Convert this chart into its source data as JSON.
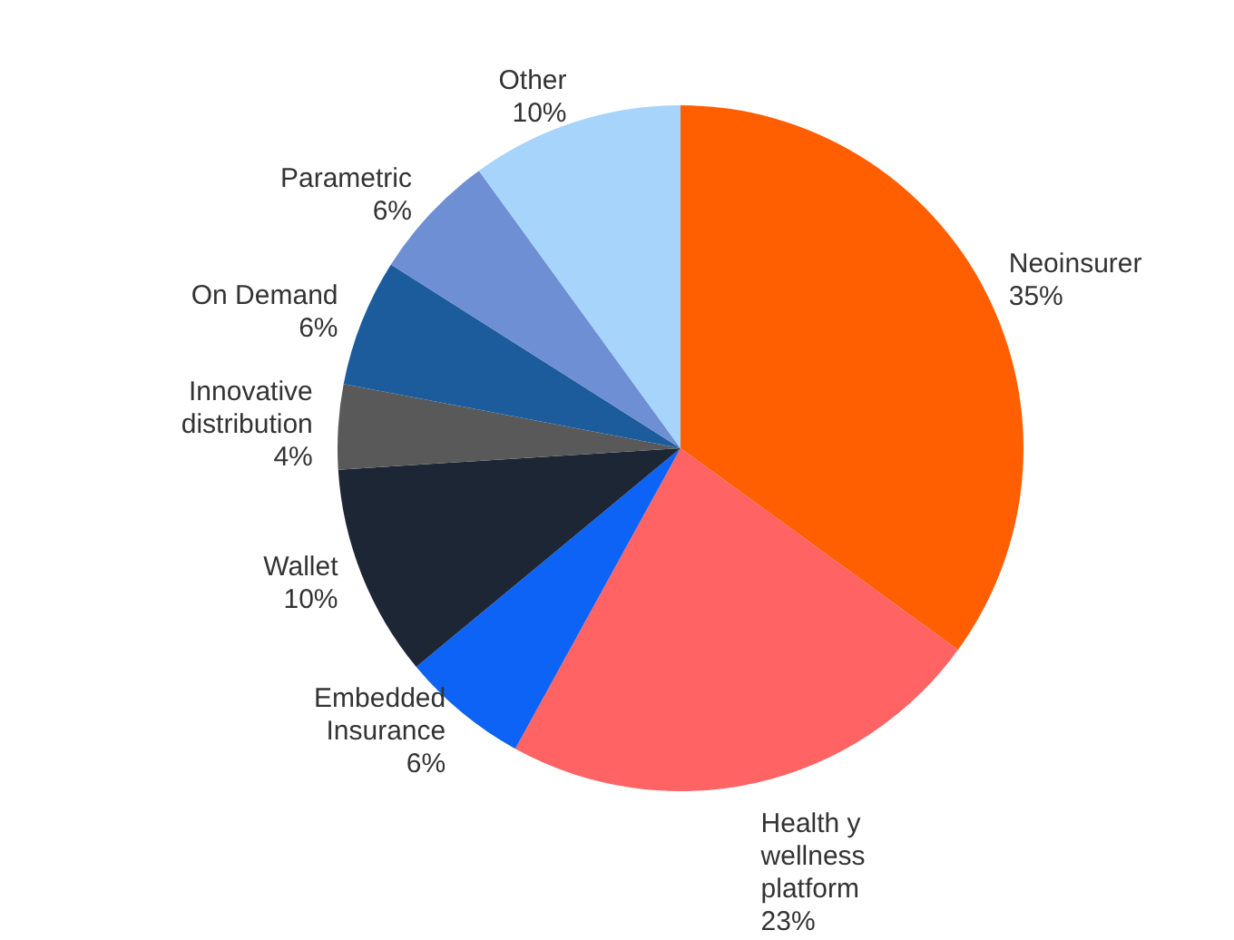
{
  "chart_data": {
    "type": "pie",
    "categories": [
      "Neoinsurer",
      "Health y wellness platform",
      "Embedded Insurance",
      "Wallet",
      "Innovative distribution",
      "On Demand",
      "Parametric",
      "Other"
    ],
    "values": [
      35,
      23,
      6,
      10,
      4,
      6,
      6,
      10
    ],
    "value_labels": [
      "35%",
      "23%",
      "6%",
      "10%",
      "4%",
      "6%",
      "6%",
      "10%"
    ],
    "colors": [
      "#ff5f00",
      "#ff6363",
      "#0d63f5",
      "#1d2634",
      "#595959",
      "#1d5c9c",
      "#6e8fd4",
      "#a6d4fa"
    ],
    "legend": false
  }
}
